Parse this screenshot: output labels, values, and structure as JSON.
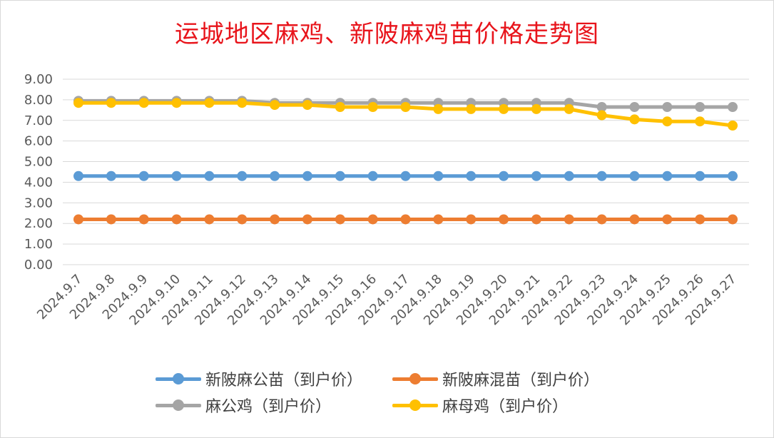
{
  "chart_data": {
    "type": "line",
    "title": "运城地区麻鸡、新陂麻鸡苗价格走势图",
    "xlabel": "",
    "ylabel": "",
    "ylim": [
      0,
      9
    ],
    "y_ticks": [
      "0.00",
      "1.00",
      "2.00",
      "3.00",
      "4.00",
      "5.00",
      "6.00",
      "7.00",
      "8.00",
      "9.00"
    ],
    "grid": true,
    "legend_position": "bottom",
    "x": [
      "2024.9.7",
      "2024.9.8",
      "2024.9.9",
      "2024.9.10",
      "2024.9.11",
      "2024.9.12",
      "2024.9.13",
      "2024.9.14",
      "2024.9.15",
      "2024.9.16",
      "2024.9.17",
      "2024.9.18",
      "2024.9.19",
      "2024.9.20",
      "2024.9.21",
      "2024.9.22",
      "2024.9.23",
      "2024.9.24",
      "2024.9.25",
      "2024.9.26",
      "2024.9.27"
    ],
    "series": [
      {
        "name": "新陂麻公苗（到户价）",
        "color": "#5b9bd5",
        "values": [
          4.3,
          4.3,
          4.3,
          4.3,
          4.3,
          4.3,
          4.3,
          4.3,
          4.3,
          4.3,
          4.3,
          4.3,
          4.3,
          4.3,
          4.3,
          4.3,
          4.3,
          4.3,
          4.3,
          4.3,
          4.3
        ]
      },
      {
        "name": "新陂麻混苗（到户价）",
        "color": "#ed7d31",
        "values": [
          2.2,
          2.2,
          2.2,
          2.2,
          2.2,
          2.2,
          2.2,
          2.2,
          2.2,
          2.2,
          2.2,
          2.2,
          2.2,
          2.2,
          2.2,
          2.2,
          2.2,
          2.2,
          2.2,
          2.2,
          2.2
        ]
      },
      {
        "name": "麻公鸡（到户价）",
        "color": "#a5a5a5",
        "values": [
          7.95,
          7.95,
          7.95,
          7.95,
          7.95,
          7.95,
          7.85,
          7.85,
          7.85,
          7.85,
          7.85,
          7.85,
          7.85,
          7.85,
          7.85,
          7.85,
          7.65,
          7.65,
          7.65,
          7.65,
          7.65
        ]
      },
      {
        "name": "麻母鸡（到户价）",
        "color": "#ffc000",
        "values": [
          7.85,
          7.85,
          7.85,
          7.85,
          7.85,
          7.85,
          7.75,
          7.75,
          7.65,
          7.65,
          7.65,
          7.55,
          7.55,
          7.55,
          7.55,
          7.55,
          7.25,
          7.05,
          6.95,
          6.95,
          6.75
        ]
      }
    ]
  }
}
